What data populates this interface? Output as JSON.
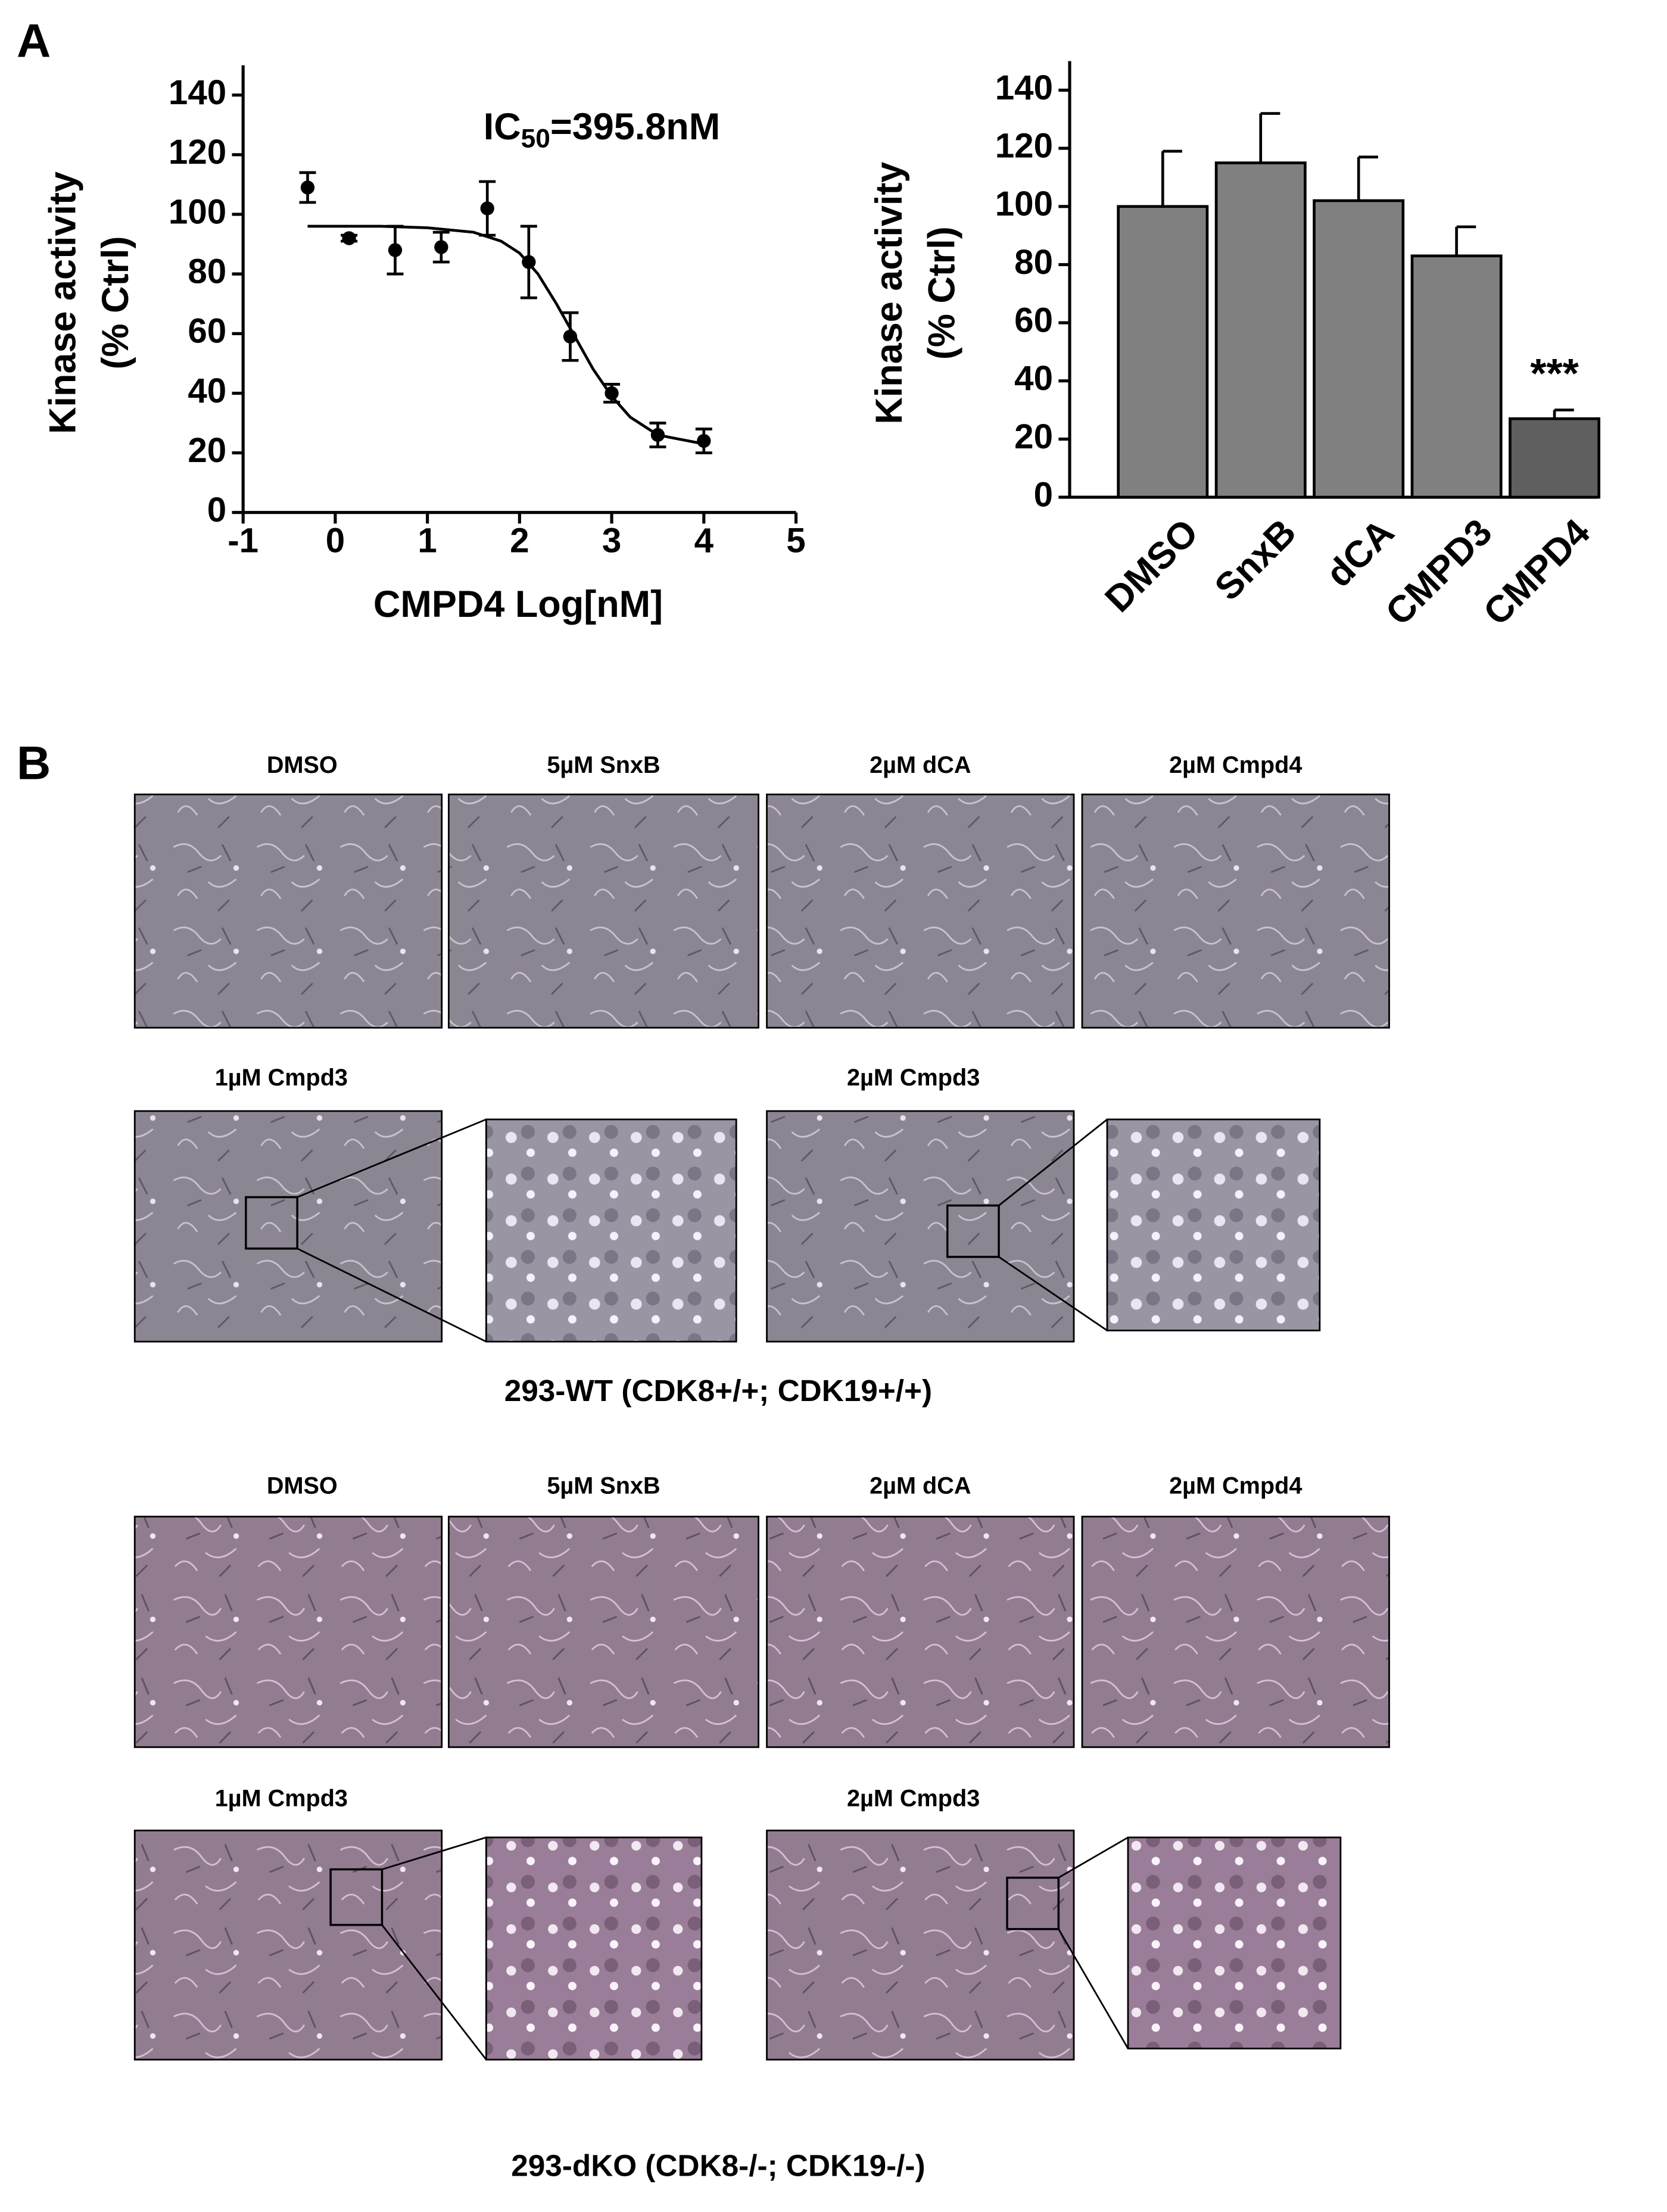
{
  "panel_a": {
    "label": "A"
  },
  "chart_data": [
    {
      "type": "scatter",
      "annotation": [
        "IC",
        "50",
        "=395.8nM"
      ],
      "xlabel": "CMPD4 Log[nM]",
      "ylabel": [
        "Kinase activity",
        "(% Ctrl)"
      ],
      "x": [
        -0.3,
        0.15,
        0.65,
        1.15,
        1.65,
        2.1,
        2.55,
        3.0,
        3.5,
        4.0
      ],
      "values": [
        109,
        92,
        88,
        89,
        102,
        84,
        59,
        40,
        26,
        24
      ],
      "errors": [
        5,
        1,
        8,
        5,
        9,
        12,
        8,
        3,
        4,
        4
      ],
      "color": "#000000",
      "fit": {
        "x": [
          -0.3,
          0.5,
          1.0,
          1.5,
          1.8,
          2.0,
          2.2,
          2.4,
          2.6,
          2.8,
          3.0,
          3.2,
          3.5,
          4.0
        ],
        "y": [
          96,
          96,
          95.5,
          94,
          91,
          87,
          80,
          70,
          59,
          48,
          39,
          32,
          26,
          23
        ]
      },
      "xlim": [
        -1,
        5
      ],
      "xticks": [
        -1,
        0,
        1,
        2,
        3,
        4,
        5
      ],
      "ylim": [
        0,
        150
      ],
      "yticks": [
        0,
        20,
        40,
        60,
        80,
        100,
        120,
        140
      ]
    },
    {
      "type": "bar",
      "ylabel": [
        "Kinase activity",
        "(% Ctrl)"
      ],
      "categories": [
        "DMSO",
        "SnxB",
        "dCA",
        "CMPD3",
        "CMPD4"
      ],
      "values": [
        100,
        115,
        102,
        83,
        27
      ],
      "errors": [
        19,
        17,
        15,
        10,
        3
      ],
      "colors": [
        "#808080",
        "#808080",
        "#808080",
        "#808080",
        "#5f5f5f"
      ],
      "annotation": "***",
      "ylim": [
        0,
        150
      ],
      "yticks": [
        0,
        20,
        40,
        60,
        80,
        100,
        120,
        140
      ]
    }
  ],
  "panel_b": {
    "label": "B",
    "groups": [
      {
        "top_labels": [
          "DMSO",
          "5µM SnxB",
          "2µM dCA",
          "2µM Cmpd4"
        ],
        "bottom_labels": [
          "1µM Cmpd3",
          "2µM Cmpd3"
        ],
        "caption": "293-WT (CDK8+/+; CDK19+/+)"
      },
      {
        "top_labels": [
          "DMSO",
          "5µM SnxB",
          "2µM dCA",
          "2µM Cmpd4"
        ],
        "bottom_labels": [
          "1µM Cmpd3",
          "2µM Cmpd3"
        ],
        "caption": "293-dKO (CDK8-/-; CDK19-/-)"
      }
    ]
  }
}
